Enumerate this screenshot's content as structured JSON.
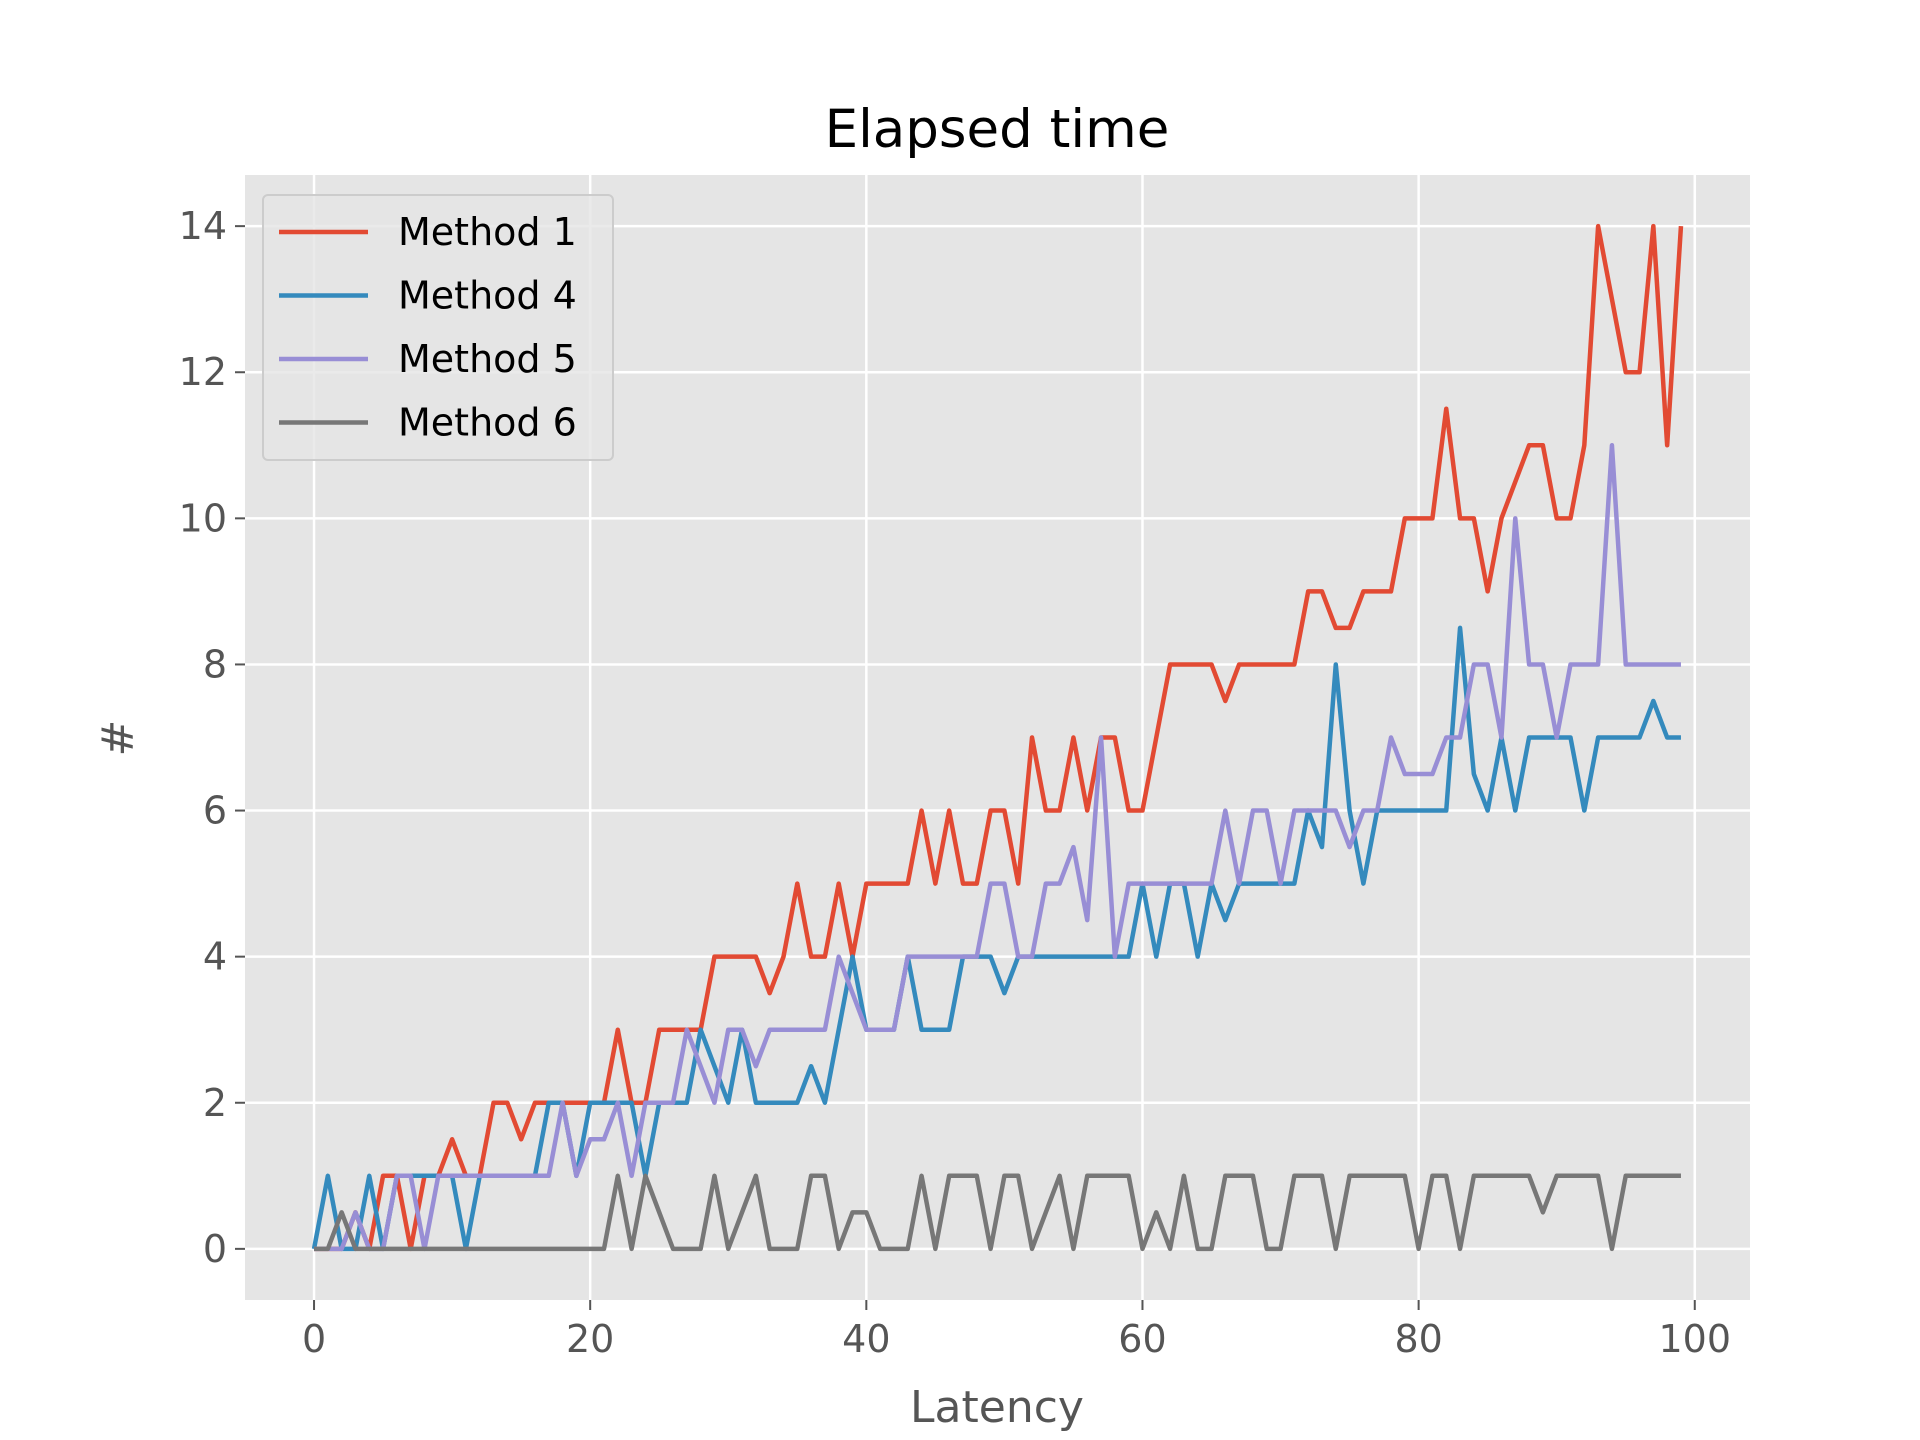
{
  "chart_data": {
    "type": "line",
    "title": "Elapsed time",
    "xlabel": "Latency",
    "ylabel": "#",
    "xlim": [
      -5,
      104
    ],
    "ylim": [
      -0.7,
      14.7
    ],
    "xticks": [
      0,
      20,
      40,
      60,
      80,
      100
    ],
    "yticks": [
      0,
      2,
      4,
      6,
      8,
      10,
      12,
      14
    ],
    "grid": true,
    "background": "#e5e5e5",
    "legend_position": "upper-left",
    "series": [
      {
        "name": "Method 1",
        "color": "#e24a33",
        "x": [
          0,
          1,
          2,
          3,
          4,
          5,
          6,
          7,
          8,
          9,
          10,
          11,
          12,
          13,
          14,
          15,
          16,
          17,
          18,
          19,
          20,
          21,
          22,
          23,
          24,
          25,
          26,
          27,
          28,
          29,
          30,
          31,
          32,
          33,
          34,
          35,
          36,
          37,
          38,
          39,
          40,
          41,
          42,
          43,
          44,
          45,
          46,
          47,
          48,
          49,
          50,
          51,
          52,
          53,
          54,
          55,
          56,
          57,
          58,
          59,
          60,
          61,
          62,
          63,
          64,
          65,
          66,
          67,
          68,
          69,
          70,
          71,
          72,
          73,
          74,
          75,
          76,
          77,
          78,
          79,
          80,
          81,
          82,
          83,
          84,
          85,
          86,
          87,
          88,
          89,
          90,
          91,
          92,
          93,
          94,
          95,
          96,
          97,
          98,
          99
        ],
        "y": [
          0,
          0,
          0,
          0.5,
          0,
          1,
          1,
          0,
          1,
          1,
          1.5,
          1,
          1,
          2,
          2,
          1.5,
          2,
          2,
          2,
          2,
          2,
          2,
          3,
          2,
          2,
          3,
          3,
          3,
          3,
          4,
          4,
          4,
          4,
          3.5,
          4,
          5,
          4,
          4,
          5,
          4,
          5,
          5,
          5,
          5,
          6,
          5,
          6,
          5,
          5,
          6,
          6,
          5,
          7,
          6,
          6,
          7,
          6,
          7,
          7,
          6,
          6,
          7,
          8,
          8,
          8,
          8,
          7.5,
          8,
          8,
          8,
          8,
          8,
          9,
          9,
          8.5,
          8.5,
          9,
          9,
          9,
          10,
          10,
          10,
          11.5,
          10,
          10,
          9,
          10,
          10.5,
          11,
          11,
          10,
          10,
          11,
          14,
          13,
          12,
          12,
          14,
          11,
          14
        ]
      },
      {
        "name": "Method 4",
        "color": "#348abd",
        "x": [
          0,
          1,
          2,
          3,
          4,
          5,
          6,
          7,
          8,
          9,
          10,
          11,
          12,
          13,
          14,
          15,
          16,
          17,
          18,
          19,
          20,
          21,
          22,
          23,
          24,
          25,
          26,
          27,
          28,
          29,
          30,
          31,
          32,
          33,
          34,
          35,
          36,
          37,
          38,
          39,
          40,
          41,
          42,
          43,
          44,
          45,
          46,
          47,
          48,
          49,
          50,
          51,
          52,
          53,
          54,
          55,
          56,
          57,
          58,
          59,
          60,
          61,
          62,
          63,
          64,
          65,
          66,
          67,
          68,
          69,
          70,
          71,
          72,
          73,
          74,
          75,
          76,
          77,
          78,
          79,
          80,
          81,
          82,
          83,
          84,
          85,
          86,
          87,
          88,
          89,
          90,
          91,
          92,
          93,
          94,
          95,
          96,
          97,
          98,
          99
        ],
        "y": [
          0,
          1,
          0,
          0,
          1,
          0,
          1,
          1,
          1,
          1,
          1,
          0,
          1,
          1,
          1,
          1,
          1,
          2,
          2,
          1,
          2,
          2,
          2,
          2,
          1,
          2,
          2,
          2,
          3,
          2.5,
          2,
          3,
          2,
          2,
          2,
          2,
          2.5,
          2,
          3,
          4,
          3,
          3,
          3,
          4,
          3,
          3,
          3,
          4,
          4,
          4,
          3.5,
          4,
          4,
          4,
          4,
          4,
          4,
          4,
          4,
          4,
          5,
          4,
          5,
          5,
          4,
          5,
          4.5,
          5,
          5,
          5,
          5,
          5,
          6,
          5.5,
          8,
          6,
          5,
          6,
          6,
          6,
          6,
          6,
          6,
          8.5,
          6.5,
          6,
          7,
          6,
          7,
          7,
          7,
          7,
          6,
          7,
          7,
          7,
          7,
          7.5,
          7,
          7
        ]
      },
      {
        "name": "Method 5",
        "color": "#988ed5",
        "x": [
          0,
          1,
          2,
          3,
          4,
          5,
          6,
          7,
          8,
          9,
          10,
          11,
          12,
          13,
          14,
          15,
          16,
          17,
          18,
          19,
          20,
          21,
          22,
          23,
          24,
          25,
          26,
          27,
          28,
          29,
          30,
          31,
          32,
          33,
          34,
          35,
          36,
          37,
          38,
          39,
          40,
          41,
          42,
          43,
          44,
          45,
          46,
          47,
          48,
          49,
          50,
          51,
          52,
          53,
          54,
          55,
          56,
          57,
          58,
          59,
          60,
          61,
          62,
          63,
          64,
          65,
          66,
          67,
          68,
          69,
          70,
          71,
          72,
          73,
          74,
          75,
          76,
          77,
          78,
          79,
          80,
          81,
          82,
          83,
          84,
          85,
          86,
          87,
          88,
          89,
          90,
          91,
          92,
          93,
          94,
          95,
          96,
          97,
          98,
          99
        ],
        "y": [
          0,
          0,
          0,
          0.5,
          0,
          0,
          1,
          1,
          0,
          1,
          1,
          1,
          1,
          1,
          1,
          1,
          1,
          1,
          2,
          1,
          1.5,
          1.5,
          2,
          1,
          2,
          2,
          2,
          3,
          2.5,
          2,
          3,
          3,
          2.5,
          3,
          3,
          3,
          3,
          3,
          4,
          3.5,
          3,
          3,
          3,
          4,
          4,
          4,
          4,
          4,
          4,
          5,
          5,
          4,
          4,
          5,
          5,
          5.5,
          4.5,
          7,
          4,
          5,
          5,
          5,
          5,
          5,
          5,
          5,
          6,
          5,
          6,
          6,
          5,
          6,
          6,
          6,
          6,
          5.5,
          6,
          6,
          7,
          6.5,
          6.5,
          6.5,
          7,
          7,
          8,
          8,
          7,
          10,
          8,
          8,
          7,
          8,
          8,
          8,
          11,
          8,
          8,
          8,
          8,
          8
        ]
      },
      {
        "name": "Method 6",
        "color": "#777777",
        "x": [
          0,
          1,
          2,
          3,
          4,
          5,
          6,
          7,
          8,
          9,
          10,
          11,
          12,
          13,
          14,
          15,
          16,
          17,
          18,
          19,
          20,
          21,
          22,
          23,
          24,
          25,
          26,
          27,
          28,
          29,
          30,
          31,
          32,
          33,
          34,
          35,
          36,
          37,
          38,
          39,
          40,
          41,
          42,
          43,
          44,
          45,
          46,
          47,
          48,
          49,
          50,
          51,
          52,
          53,
          54,
          55,
          56,
          57,
          58,
          59,
          60,
          61,
          62,
          63,
          64,
          65,
          66,
          67,
          68,
          69,
          70,
          71,
          72,
          73,
          74,
          75,
          76,
          77,
          78,
          79,
          80,
          81,
          82,
          83,
          84,
          85,
          86,
          87,
          88,
          89,
          90,
          91,
          92,
          93,
          94,
          95,
          96,
          97,
          98,
          99
        ],
        "y": [
          0,
          0,
          0.5,
          0,
          0,
          0,
          0,
          0,
          0,
          0,
          0,
          0,
          0,
          0,
          0,
          0,
          0,
          0,
          0,
          0,
          0,
          0,
          1,
          0,
          1,
          0.5,
          0,
          0,
          0,
          1,
          0,
          0.5,
          1,
          0,
          0,
          0,
          1,
          1,
          0,
          0.5,
          0.5,
          0,
          0,
          0,
          1,
          0,
          1,
          1,
          1,
          0,
          1,
          1,
          0,
          0.5,
          1,
          0,
          1,
          1,
          1,
          1,
          0,
          0.5,
          0,
          1,
          0,
          0,
          1,
          1,
          1,
          0,
          0,
          1,
          1,
          1,
          0,
          1,
          1,
          1,
          1,
          1,
          0,
          1,
          1,
          0,
          1,
          1,
          1,
          1,
          1,
          0.5,
          1,
          1,
          1,
          1,
          0,
          1,
          1,
          1,
          1,
          1
        ]
      }
    ]
  }
}
